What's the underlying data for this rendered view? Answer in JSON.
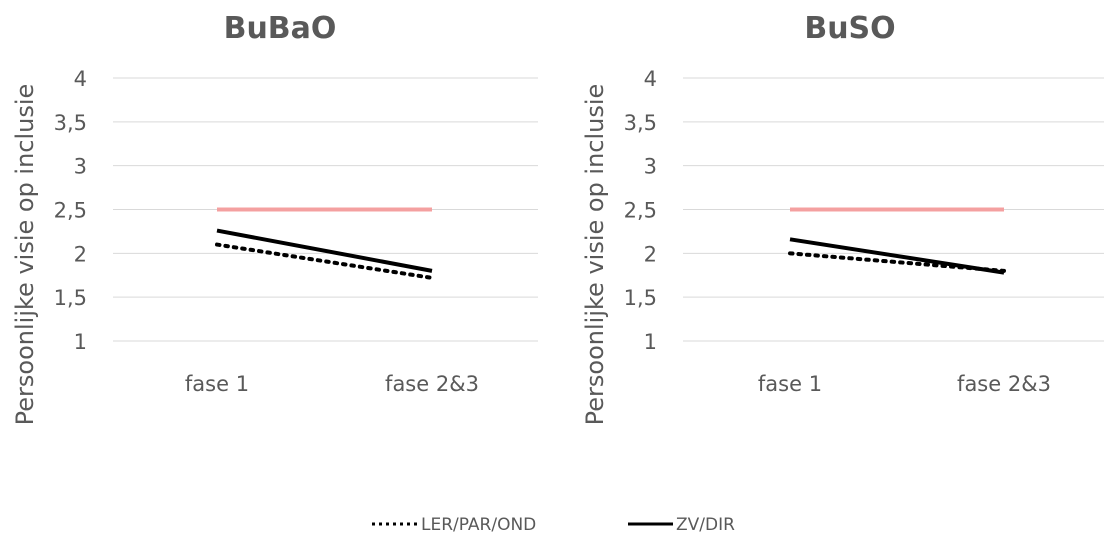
{
  "chart_data": [
    {
      "type": "line",
      "title": "BuBaO",
      "ylabel": "Persoonlijke visie op inclusie",
      "xlabel": "",
      "categories": [
        "fase 1",
        "fase 2&3"
      ],
      "ylim": [
        1,
        4
      ],
      "yticks": [
        "1",
        "1,5",
        "2",
        "2,5",
        "3",
        "3,5",
        "4"
      ],
      "grid": true,
      "reference_line": {
        "value": 2.5,
        "color": "#f4a0a0"
      },
      "series": [
        {
          "name": "LER/PAR/OND",
          "values": [
            2.1,
            1.72
          ],
          "style": "dotted",
          "color": "#000000"
        },
        {
          "name": "ZV/DIR",
          "values": [
            2.26,
            1.8
          ],
          "style": "solid",
          "color": "#000000"
        }
      ]
    },
    {
      "type": "line",
      "title": "BuSO",
      "ylabel": "Persoonlijke visie op inclusie",
      "xlabel": "",
      "categories": [
        "fase 1",
        "fase 2&3"
      ],
      "ylim": [
        1,
        4
      ],
      "yticks": [
        "1",
        "1,5",
        "2",
        "2,5",
        "3",
        "3,5",
        "4"
      ],
      "grid": true,
      "reference_line": {
        "value": 2.5,
        "color": "#f4a0a0"
      },
      "series": [
        {
          "name": "LER/PAR/OND",
          "values": [
            2.0,
            1.8
          ],
          "style": "dotted",
          "color": "#000000"
        },
        {
          "name": "ZV/DIR",
          "values": [
            2.16,
            1.78
          ],
          "style": "solid",
          "color": "#000000"
        }
      ]
    }
  ],
  "legend": {
    "placement": "bottom",
    "items": [
      {
        "label": "LER/PAR/OND",
        "style": "dotted"
      },
      {
        "label": "ZV/DIR",
        "style": "solid"
      }
    ]
  }
}
